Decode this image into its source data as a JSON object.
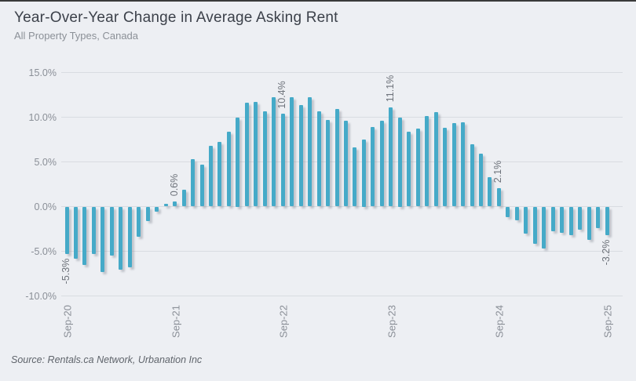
{
  "header": {
    "title": "Year-Over-Year Change in Average Asking Rent",
    "subtitle": "All Property Types, Canada"
  },
  "source": "Source: Rentals.ca Network, Urbanation Inc",
  "chart_data": {
    "type": "bar",
    "title": "Year-Over-Year Change in Average Asking Rent",
    "subtitle": "All Property Types, Canada",
    "ylabel": "",
    "xlabel": "",
    "grid": true,
    "bar_color": "#45aac8",
    "ylim": [
      -12,
      16
    ],
    "y_ticks": [
      15,
      10,
      5,
      0,
      -5,
      -10
    ],
    "y_tick_labels": [
      "15.0%",
      "10.0%",
      "5.0%",
      "0.0%",
      "-5.0%",
      "-10.0%"
    ],
    "x_tick_labels": [
      "Sep-20",
      "Sep-21",
      "Sep-22",
      "Sep-23",
      "Sep-24",
      "Sep-25"
    ],
    "x": [
      "Sep-20",
      "Oct-20",
      "Nov-20",
      "Dec-20",
      "Jan-21",
      "Feb-21",
      "Mar-21",
      "Apr-21",
      "May-21",
      "Jun-21",
      "Jul-21",
      "Aug-21",
      "Sep-21",
      "Oct-21",
      "Nov-21",
      "Dec-21",
      "Jan-22",
      "Feb-22",
      "Mar-22",
      "Apr-22",
      "May-22",
      "Jun-22",
      "Jul-22",
      "Aug-22",
      "Sep-22",
      "Oct-22",
      "Nov-22",
      "Dec-22",
      "Jan-23",
      "Feb-23",
      "Mar-23",
      "Apr-23",
      "May-23",
      "Jun-23",
      "Jul-23",
      "Aug-23",
      "Sep-23",
      "Oct-23",
      "Nov-23",
      "Dec-23",
      "Jan-24",
      "Feb-24",
      "Mar-24",
      "Apr-24",
      "May-24",
      "Jun-24",
      "Jul-24",
      "Aug-24",
      "Sep-24",
      "Oct-24",
      "Nov-24",
      "Dec-24",
      "Jan-25",
      "Feb-25",
      "Mar-25",
      "Apr-25",
      "May-25",
      "Jun-25",
      "Jul-25",
      "Aug-25",
      "Sep-25"
    ],
    "values": [
      -5.3,
      -5.8,
      -6.5,
      -5.3,
      -7.3,
      -5.5,
      -7.1,
      -6.8,
      -3.4,
      -1.6,
      -0.6,
      0.3,
      0.6,
      1.9,
      5.3,
      4.7,
      6.8,
      7.2,
      8.4,
      10.0,
      11.6,
      11.7,
      10.7,
      12.2,
      10.4,
      12.2,
      11.4,
      12.2,
      10.7,
      9.7,
      10.9,
      9.6,
      6.6,
      7.5,
      8.9,
      9.6,
      11.1,
      10.0,
      8.4,
      8.7,
      10.1,
      10.6,
      8.8,
      9.3,
      9.4,
      7.0,
      5.9,
      3.3,
      2.1,
      -1.2,
      -1.5,
      -3.0,
      -4.2,
      -4.7,
      -2.8,
      -2.9,
      -3.2,
      -2.6,
      -3.7,
      -2.4,
      -3.2
    ],
    "annotations": [
      {
        "month": "Sep-20",
        "label": "-5.3%"
      },
      {
        "month": "Sep-21",
        "label": "0.6%"
      },
      {
        "month": "Sep-22",
        "label": "10.4%"
      },
      {
        "month": "Sep-23",
        "label": "11.1%"
      },
      {
        "month": "Sep-24",
        "label": "2.1%"
      },
      {
        "month": "Sep-25",
        "label": "-3.2%"
      }
    ],
    "legend": null
  }
}
